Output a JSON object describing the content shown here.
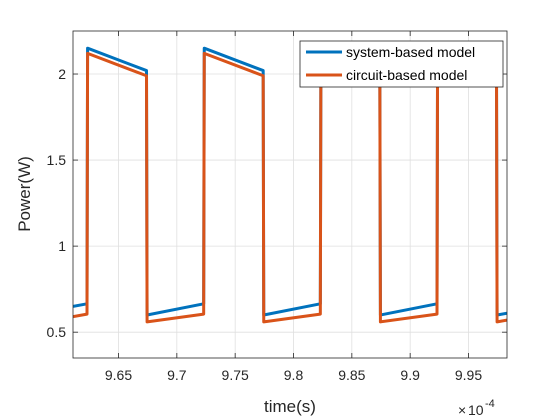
{
  "chart_data": {
    "type": "line",
    "title": "",
    "xlabel": "time(s)",
    "ylabel": "Power(W)",
    "x_exponent_label": "10",
    "x_exponent_power": "-4",
    "x_multiplier_symbol": "×",
    "xlim": [
      9.611,
      9.983
    ],
    "ylim": [
      0.35,
      2.25
    ],
    "x_ticks": [
      9.65,
      9.7,
      9.75,
      9.8,
      9.85,
      9.9,
      9.95
    ],
    "x_tick_labels": [
      "9.65",
      "9.7",
      "9.75",
      "9.8",
      "9.85",
      "9.9",
      "9.95"
    ],
    "y_ticks": [
      0.5,
      1,
      1.5,
      2
    ],
    "y_tick_labels": [
      "0.5",
      "1",
      "1.5",
      "2"
    ],
    "grid": true,
    "legend_position": "top-right",
    "series": [
      {
        "name": "system-based model",
        "color": "#0072BD",
        "x": [
          9.611,
          9.623,
          9.6235,
          9.674,
          9.6745,
          9.723,
          9.7235,
          9.774,
          9.7745,
          9.823,
          9.8235,
          9.874,
          9.8745,
          9.923,
          9.9235,
          9.974,
          9.9745,
          9.983
        ],
        "y": [
          0.65,
          0.665,
          2.15,
          2.02,
          0.6,
          0.665,
          2.15,
          2.02,
          0.6,
          0.665,
          2.15,
          2.02,
          0.6,
          0.665,
          2.15,
          2.02,
          0.6,
          0.61
        ]
      },
      {
        "name": "circuit-based model",
        "color": "#D95319",
        "x": [
          9.611,
          9.623,
          9.6235,
          9.674,
          9.6745,
          9.723,
          9.7235,
          9.774,
          9.7745,
          9.823,
          9.8235,
          9.874,
          9.8745,
          9.923,
          9.9235,
          9.974,
          9.9745,
          9.983
        ],
        "y": [
          0.59,
          0.605,
          2.12,
          1.99,
          0.56,
          0.605,
          2.12,
          1.99,
          0.56,
          0.605,
          2.12,
          1.99,
          0.56,
          0.605,
          2.12,
          1.99,
          0.56,
          0.57
        ]
      }
    ]
  }
}
